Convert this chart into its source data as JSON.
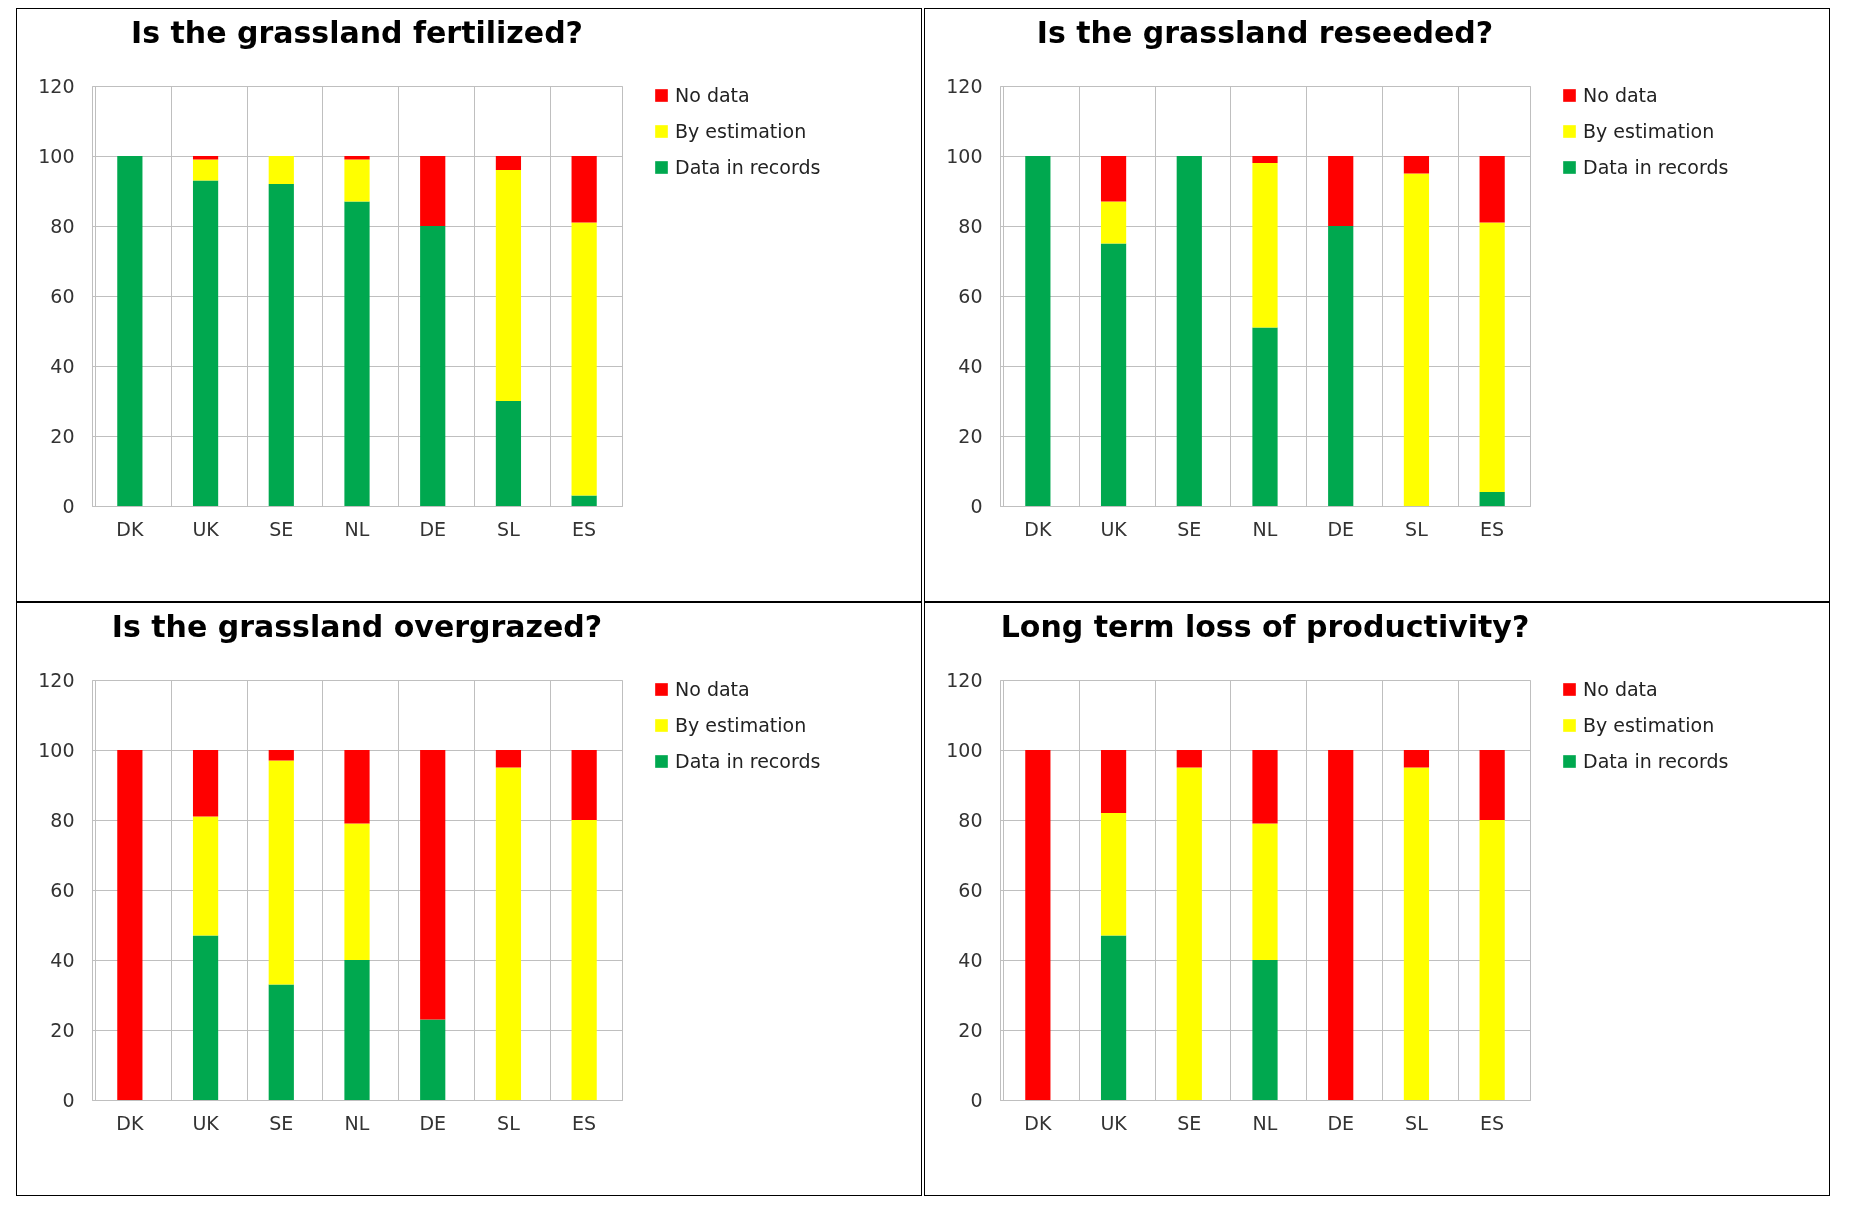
{
  "chart_data": [
    {
      "type": "bar",
      "title": "Is the grassland fertilized?",
      "categories": [
        "DK",
        "UK",
        "SE",
        "NL",
        "DE",
        "SL",
        "ES"
      ],
      "stacked": true,
      "ylim": [
        0,
        120
      ],
      "yticks": [
        0,
        20,
        40,
        60,
        80,
        100,
        120
      ],
      "grid": true,
      "legend": "right",
      "series": [
        {
          "name": "Data in records",
          "color": "#00a84f",
          "values": [
            100,
            93,
            92,
            87,
            80,
            30,
            3
          ]
        },
        {
          "name": "By estimation",
          "color": "#ffff00",
          "values": [
            0,
            6,
            8,
            12,
            0,
            66,
            78
          ]
        },
        {
          "name": "No data",
          "color": "#ff0000",
          "values": [
            0,
            1,
            0,
            1,
            20,
            4,
            19
          ]
        }
      ]
    },
    {
      "type": "bar",
      "title": "Is the grassland reseeded?",
      "categories": [
        "DK",
        "UK",
        "SE",
        "NL",
        "DE",
        "SL",
        "ES"
      ],
      "stacked": true,
      "ylim": [
        0,
        120
      ],
      "yticks": [
        0,
        20,
        40,
        60,
        80,
        100,
        120
      ],
      "grid": true,
      "legend": "right",
      "series": [
        {
          "name": "Data in records",
          "color": "#00a84f",
          "values": [
            100,
            75,
            100,
            51,
            80,
            0,
            4
          ]
        },
        {
          "name": "By estimation",
          "color": "#ffff00",
          "values": [
            0,
            12,
            0,
            47,
            0,
            95,
            77
          ]
        },
        {
          "name": "No data",
          "color": "#ff0000",
          "values": [
            0,
            13,
            0,
            2,
            20,
            5,
            19
          ]
        }
      ]
    },
    {
      "type": "bar",
      "title": "Is the grassland overgrazed?",
      "categories": [
        "DK",
        "UK",
        "SE",
        "NL",
        "DE",
        "SL",
        "ES"
      ],
      "stacked": true,
      "ylim": [
        0,
        120
      ],
      "yticks": [
        0,
        20,
        40,
        60,
        80,
        100,
        120
      ],
      "grid": true,
      "legend": "right",
      "series": [
        {
          "name": "Data in records",
          "color": "#00a84f",
          "values": [
            0,
            47,
            33,
            40,
            23,
            0,
            0
          ]
        },
        {
          "name": "By estimation",
          "color": "#ffff00",
          "values": [
            0,
            34,
            64,
            39,
            0,
            95,
            80
          ]
        },
        {
          "name": "No data",
          "color": "#ff0000",
          "values": [
            100,
            19,
            3,
            21,
            77,
            5,
            20
          ]
        }
      ]
    },
    {
      "type": "bar",
      "title": "Long term loss of productivity?",
      "categories": [
        "DK",
        "UK",
        "SE",
        "NL",
        "DE",
        "SL",
        "ES"
      ],
      "stacked": true,
      "ylim": [
        0,
        120
      ],
      "yticks": [
        0,
        20,
        40,
        60,
        80,
        100,
        120
      ],
      "grid": true,
      "legend": "right",
      "series": [
        {
          "name": "Data in records",
          "color": "#00a84f",
          "values": [
            0,
            47,
            0,
            40,
            0,
            0,
            0
          ]
        },
        {
          "name": "By estimation",
          "color": "#ffff00",
          "values": [
            0,
            35,
            95,
            39,
            0,
            95,
            80
          ]
        },
        {
          "name": "No data",
          "color": "#ff0000",
          "values": [
            100,
            18,
            5,
            21,
            100,
            5,
            20
          ]
        }
      ]
    }
  ]
}
